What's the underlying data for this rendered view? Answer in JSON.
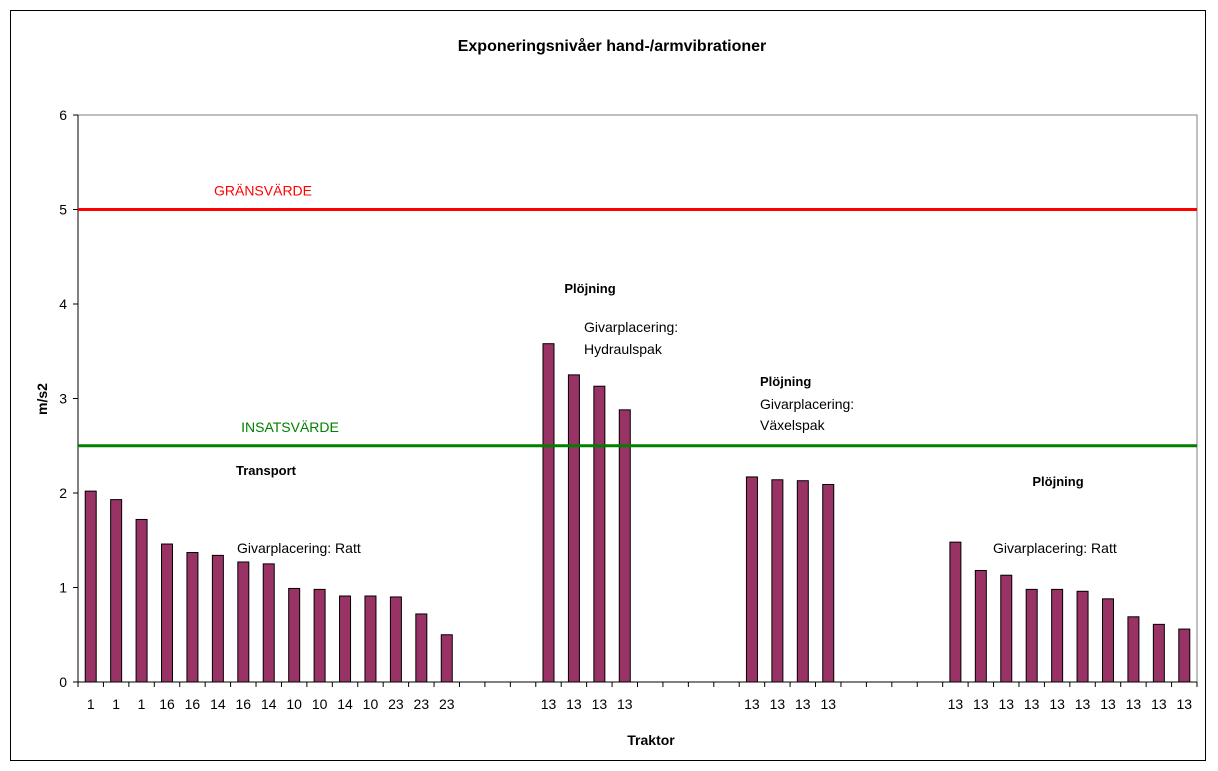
{
  "chart_data": {
    "type": "bar",
    "title": "Exponeringsnivåer hand-/armvibrationer",
    "xlabel": "Traktor",
    "ylabel": "m/s2",
    "ylim": [
      0,
      6
    ],
    "yticks": [
      0,
      1,
      2,
      3,
      4,
      5,
      6
    ],
    "grid": false,
    "legend": "none",
    "bar_color": "#993366",
    "categories": [
      "1",
      "1",
      "1",
      "16",
      "16",
      "14",
      "16",
      "14",
      "10",
      "10",
      "14",
      "10",
      "23",
      "23",
      "23",
      "",
      "",
      "",
      "13",
      "13",
      "13",
      "13",
      "",
      "",
      "",
      "",
      "13",
      "13",
      "13",
      "13",
      "",
      "",
      "",
      "",
      "13",
      "13",
      "13",
      "13",
      "13",
      "13",
      "13",
      "13",
      "13",
      "13"
    ],
    "values": [
      2.02,
      1.93,
      1.72,
      1.46,
      1.37,
      1.34,
      1.27,
      1.25,
      0.99,
      0.98,
      0.91,
      0.91,
      0.9,
      0.72,
      0.5,
      null,
      null,
      null,
      3.58,
      3.25,
      3.13,
      2.88,
      null,
      null,
      null,
      null,
      2.17,
      2.14,
      2.13,
      2.09,
      null,
      null,
      null,
      null,
      1.48,
      1.18,
      1.13,
      0.98,
      0.98,
      0.96,
      0.88,
      0.69,
      0.61,
      0.56
    ],
    "reference_lines": [
      {
        "label": "GRÄNSVÄRDE",
        "value": 5,
        "color": "#ff0000"
      },
      {
        "label": "INSATSVÄRDE",
        "value": 2.5,
        "color": "#008000"
      }
    ],
    "annotations": {
      "transport": "Transport",
      "givar_ratt_1": "Givarplacering: Ratt",
      "plojning_1": "Plöjning",
      "givar_hydr_1": "Givarplacering:",
      "givar_hydr_2": "Hydraulspak",
      "plojning_2": "Plöjning",
      "givar_vaxel_1": "Givarplacering:",
      "givar_vaxel_2": "Växelspak",
      "plojning_3": "Plöjning",
      "givar_ratt_2": "Givarplacering: Ratt"
    }
  }
}
